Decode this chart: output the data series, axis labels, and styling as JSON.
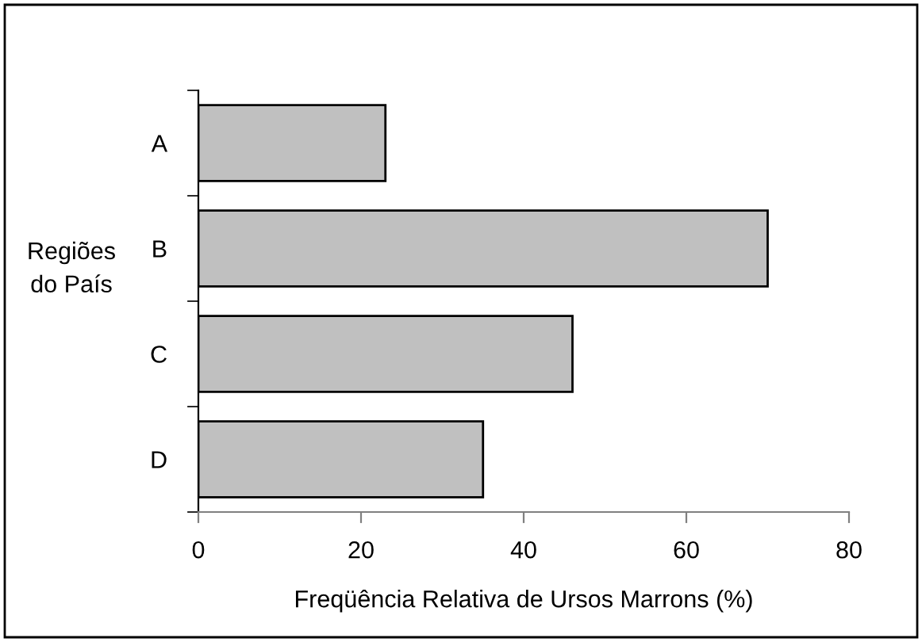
{
  "chart_data": {
    "type": "bar",
    "orientation": "horizontal",
    "xlabel": "Freqüência Relativa de Ursos Marrons (%)",
    "ylabel": "Regiões\ndo País",
    "categories": [
      "A",
      "B",
      "C",
      "D"
    ],
    "values": [
      23,
      70,
      46,
      35
    ],
    "color": "#c0c0c0",
    "xlim": [
      0,
      80
    ],
    "xticks": [
      0,
      20,
      40,
      60,
      80
    ],
    "grid": false,
    "legend": false
  }
}
